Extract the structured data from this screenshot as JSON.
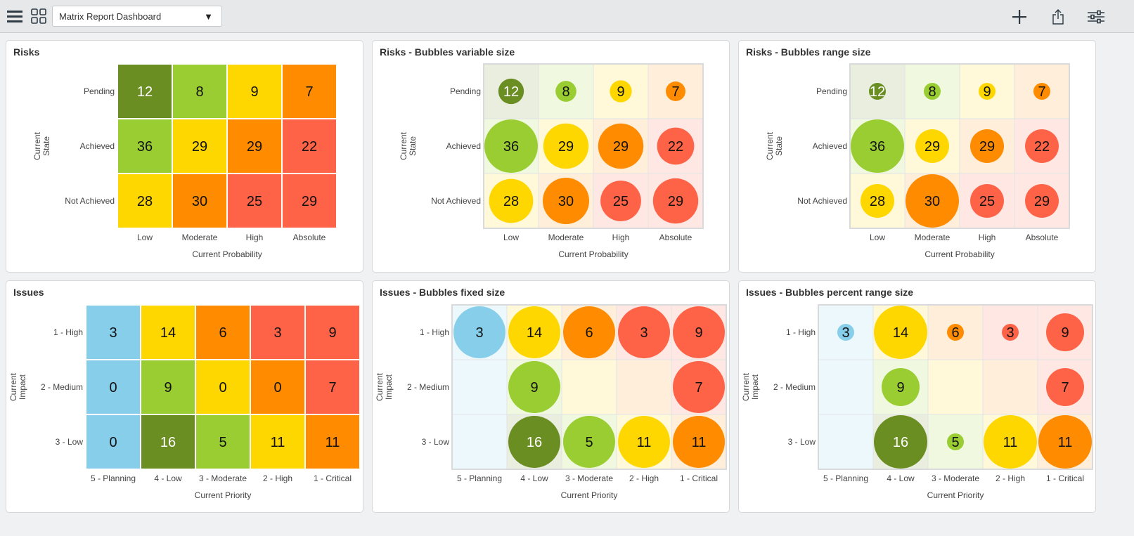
{
  "header": {
    "dashboard_select": "Matrix Report Dashboard",
    "icons": [
      "menu-icon",
      "grid-icon",
      "chevron-down-icon",
      "plus-icon",
      "share-icon",
      "sliders-icon"
    ]
  },
  "colors": {
    "dark_green": "#6b8e23",
    "green": "#9acd32",
    "yellow": "#ffd700",
    "orange": "#ff8c00",
    "red": "#ff6347",
    "blue": "#87ceeb"
  },
  "chart_data": [
    {
      "type": "heatmap",
      "title": "Risks",
      "style": "matrix",
      "xlabel": "Current Probability",
      "ylabel": [
        "Current",
        "State"
      ],
      "categories": [
        "Low",
        "Moderate",
        "High",
        "Absolute"
      ],
      "rows": [
        "Pending",
        "Achieved",
        "Not Achieved"
      ],
      "values": [
        [
          12,
          8,
          9,
          7
        ],
        [
          36,
          29,
          29,
          22
        ],
        [
          28,
          30,
          25,
          29
        ]
      ],
      "cell_colors": [
        [
          "dark_green",
          "green",
          "yellow",
          "orange"
        ],
        [
          "green",
          "yellow",
          "orange",
          "red"
        ],
        [
          "yellow",
          "orange",
          "red",
          "red"
        ]
      ]
    },
    {
      "type": "bubble",
      "title": "Risks - Bubbles variable size",
      "style": "variable",
      "xlabel": "Current Probability",
      "ylabel": [
        "Current",
        "State"
      ],
      "categories": [
        "Low",
        "Moderate",
        "High",
        "Absolute"
      ],
      "rows": [
        "Pending",
        "Achieved",
        "Not Achieved"
      ],
      "values": [
        [
          12,
          8,
          9,
          7
        ],
        [
          36,
          29,
          29,
          22
        ],
        [
          28,
          30,
          25,
          29
        ]
      ],
      "cell_colors": [
        [
          "dark_green",
          "green",
          "yellow",
          "orange"
        ],
        [
          "green",
          "yellow",
          "orange",
          "red"
        ],
        [
          "yellow",
          "orange",
          "red",
          "red"
        ]
      ]
    },
    {
      "type": "bubble",
      "title": "Risks - Bubbles range size",
      "style": "range",
      "xlabel": "Current Probability",
      "ylabel": [
        "Current",
        "State"
      ],
      "categories": [
        "Low",
        "Moderate",
        "High",
        "Absolute"
      ],
      "rows": [
        "Pending",
        "Achieved",
        "Not Achieved"
      ],
      "values": [
        [
          12,
          8,
          9,
          7
        ],
        [
          36,
          29,
          29,
          22
        ],
        [
          28,
          30,
          25,
          29
        ]
      ],
      "cell_colors": [
        [
          "dark_green",
          "green",
          "yellow",
          "orange"
        ],
        [
          "green",
          "yellow",
          "orange",
          "red"
        ],
        [
          "yellow",
          "orange",
          "red",
          "red"
        ]
      ]
    },
    {
      "type": "heatmap",
      "title": "Issues",
      "style": "matrix",
      "xlabel": "Current Priority",
      "ylabel": [
        "Current",
        "Impact"
      ],
      "categories": [
        "5 - Planning",
        "4 - Low",
        "3 - Moderate",
        "2 - High",
        "1 - Critical"
      ],
      "rows": [
        "1 - High",
        "2 - Medium",
        "3 - Low"
      ],
      "values": [
        [
          3,
          14,
          6,
          3,
          9
        ],
        [
          0,
          9,
          0,
          0,
          7
        ],
        [
          0,
          16,
          5,
          11,
          11
        ]
      ],
      "cell_colors": [
        [
          "blue",
          "yellow",
          "orange",
          "red",
          "red"
        ],
        [
          "blue",
          "green",
          "yellow",
          "orange",
          "red"
        ],
        [
          "blue",
          "dark_green",
          "green",
          "yellow",
          "orange"
        ]
      ]
    },
    {
      "type": "bubble",
      "title": "Issues - Bubbles fixed size",
      "style": "fixed",
      "xlabel": "Current Priority",
      "ylabel": [
        "Current",
        "Impact"
      ],
      "categories": [
        "5 - Planning",
        "4 - Low",
        "3 - Moderate",
        "2 - High",
        "1 - Critical"
      ],
      "rows": [
        "1 - High",
        "2 - Medium",
        "3 - Low"
      ],
      "values": [
        [
          3,
          14,
          6,
          3,
          9
        ],
        [
          0,
          9,
          0,
          0,
          7
        ],
        [
          0,
          16,
          5,
          11,
          11
        ]
      ],
      "cell_colors": [
        [
          "blue",
          "yellow",
          "orange",
          "red",
          "red"
        ],
        [
          "blue",
          "green",
          "yellow",
          "orange",
          "red"
        ],
        [
          "blue",
          "dark_green",
          "green",
          "yellow",
          "orange"
        ]
      ]
    },
    {
      "type": "bubble",
      "title": "Issues - Bubbles percent range size",
      "style": "percent",
      "xlabel": "Current Priority",
      "ylabel": [
        "Current",
        "Impact"
      ],
      "categories": [
        "5 - Planning",
        "4 - Low",
        "3 - Moderate",
        "2 - High",
        "1 - Critical"
      ],
      "rows": [
        "1 - High",
        "2 - Medium",
        "3 - Low"
      ],
      "values": [
        [
          3,
          14,
          6,
          3,
          9
        ],
        [
          0,
          9,
          0,
          0,
          7
        ],
        [
          0,
          16,
          5,
          11,
          11
        ]
      ],
      "cell_colors": [
        [
          "blue",
          "yellow",
          "orange",
          "red",
          "red"
        ],
        [
          "blue",
          "green",
          "yellow",
          "orange",
          "red"
        ],
        [
          "blue",
          "dark_green",
          "green",
          "yellow",
          "orange"
        ]
      ]
    }
  ]
}
